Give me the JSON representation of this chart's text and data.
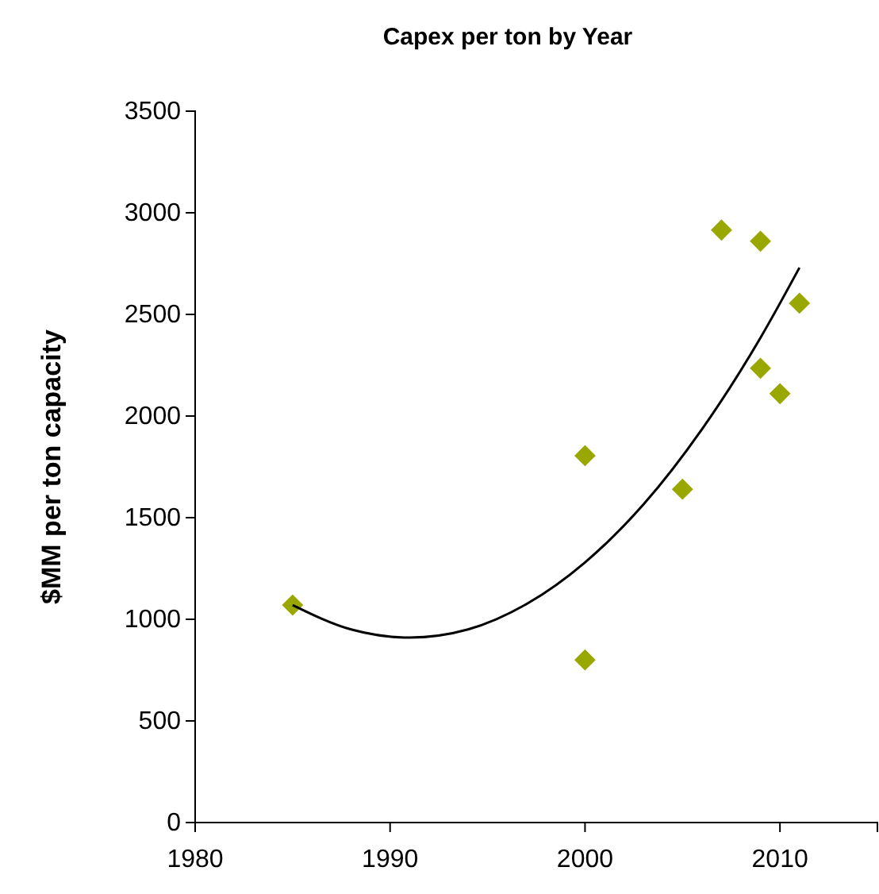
{
  "chart_data": {
    "type": "scatter",
    "title": "Capex per ton by Year",
    "ylabel": "$MM per ton capacity",
    "marker": "diamond",
    "grid": false,
    "xlim": [
      1980,
      2015
    ],
    "xticks": [
      1980,
      1990,
      2000,
      2010
    ],
    "ylim": [
      0,
      3500
    ],
    "yticks": [
      0,
      500,
      1000,
      1500,
      2000,
      2500,
      3000,
      3500
    ],
    "series": [
      {
        "color": "#99a800",
        "x": [
          1985,
          2000,
          2000,
          2005,
          2007,
          2009,
          2009,
          2010,
          2011
        ],
        "values": [
          1070,
          1805,
          800,
          1640,
          2915,
          2860,
          2235,
          2110,
          2555
        ]
      },
      {
        "type": "line",
        "color": "#000000",
        "line_style": "solid",
        "marker": "none",
        "x": [
          1985,
          1988,
          1991,
          1994,
          1997,
          2000,
          2003,
          2006,
          2009,
          2011
        ],
        "values": [
          1070,
          950,
          910,
          950,
          1075,
          1280,
          1565,
          1935,
          2385,
          2730
        ]
      }
    ]
  }
}
